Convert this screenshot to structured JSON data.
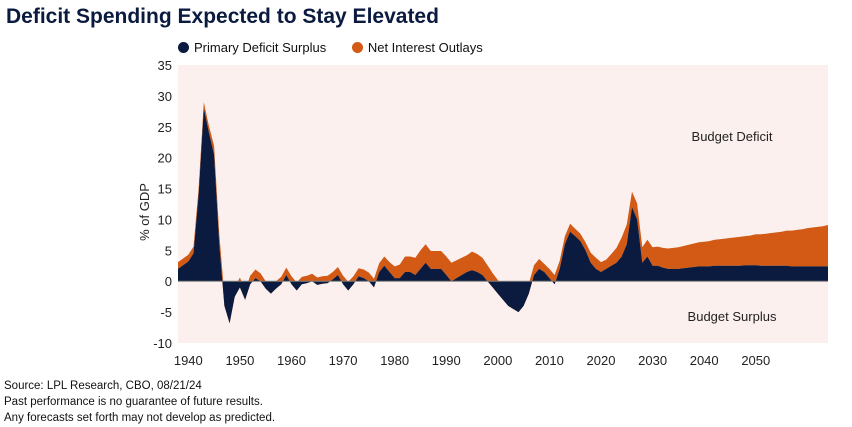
{
  "chart_data": {
    "type": "area",
    "title": "Deficit Spending Expected to Stay Elevated",
    "xlabel": "",
    "ylabel": "% of GDP",
    "xlim": [
      1938,
      2064
    ],
    "ylim": [
      -10,
      35
    ],
    "yticks": [
      35,
      30,
      25,
      20,
      15,
      10,
      5,
      0,
      -5,
      -10
    ],
    "yticklabels": [
      "35",
      "30",
      "25",
      "20",
      "15",
      "10",
      "5",
      "0",
      "-5",
      "-10"
    ],
    "xticks": [
      1940,
      1950,
      1960,
      1970,
      1980,
      1990,
      2000,
      2010,
      2020,
      2030,
      2040,
      2050
    ],
    "xticklabels": [
      "1940",
      "1950",
      "1960",
      "1970",
      "1980",
      "1990",
      "2000",
      "2010",
      "2020",
      "2030",
      "2040",
      "2050"
    ],
    "legend": {
      "position": "top-left",
      "entries": [
        "Primary Deficit Surplus",
        "Net Interest Outlays"
      ]
    },
    "annotations": [
      "Budget Deficit",
      "Budget Surplus"
    ],
    "colors": {
      "primary": "#0b1a3f",
      "interest": "#d25a14",
      "plot_bg": "#fbf0ee",
      "zero_line": "#7f7f7f"
    },
    "x": [
      1938,
      1940,
      1941,
      1942,
      1943,
      1944,
      1945,
      1946,
      1947,
      1948,
      1949,
      1950,
      1951,
      1952,
      1953,
      1954,
      1955,
      1956,
      1957,
      1958,
      1959,
      1960,
      1961,
      1962,
      1963,
      1964,
      1965,
      1966,
      1967,
      1968,
      1969,
      1970,
      1971,
      1972,
      1973,
      1974,
      1975,
      1976,
      1977,
      1978,
      1979,
      1980,
      1981,
      1982,
      1983,
      1984,
      1985,
      1986,
      1987,
      1988,
      1989,
      1990,
      1991,
      1992,
      1993,
      1994,
      1995,
      1996,
      1997,
      1998,
      1999,
      2000,
      2001,
      2002,
      2003,
      2004,
      2005,
      2006,
      2007,
      2008,
      2009,
      2010,
      2011,
      2012,
      2013,
      2014,
      2015,
      2016,
      2017,
      2018,
      2019,
      2020,
      2021,
      2022,
      2023,
      2024,
      2025,
      2026,
      2027,
      2028,
      2029,
      2030,
      2031,
      2032,
      2033,
      2034,
      2035,
      2036,
      2037,
      2038,
      2039,
      2040,
      2041,
      2042,
      2043,
      2044,
      2045,
      2046,
      2047,
      2048,
      2049,
      2050,
      2051,
      2052,
      2053,
      2054,
      2055,
      2056,
      2057,
      2058,
      2059,
      2060,
      2061,
      2062,
      2063,
      2064
    ],
    "series": [
      {
        "name": "Primary Deficit Surplus",
        "values": [
          2,
          3.2,
          4.5,
          14,
          28,
          24,
          20.5,
          6,
          -4,
          -6.8,
          -2.5,
          -1,
          -3,
          -0.5,
          0.5,
          0,
          -1.2,
          -2,
          -1.2,
          -0.5,
          1,
          -0.5,
          -1.5,
          -0.5,
          -0.3,
          0,
          -0.6,
          -0.4,
          -0.3,
          0.3,
          1,
          -0.5,
          -1.5,
          -0.5,
          0.8,
          0.5,
          0,
          -1,
          1.5,
          2.5,
          1.5,
          0.5,
          0.5,
          1.5,
          1.5,
          1,
          2,
          3,
          2,
          2,
          2,
          1,
          0,
          0.5,
          1,
          1.5,
          1.8,
          1.5,
          1,
          0,
          -1,
          -2,
          -3,
          -4,
          -4.5,
          -5,
          -4,
          -2,
          1,
          2,
          1.5,
          0.5,
          -0.5,
          2,
          6,
          8,
          7.3,
          6.5,
          5,
          3,
          2,
          1.5,
          2,
          2.5,
          3,
          4,
          6,
          12,
          10,
          3,
          4,
          2.5,
          2.5,
          2.2,
          2,
          2,
          2,
          2.1,
          2.2,
          2.3,
          2.4,
          2.4,
          2.4,
          2.5,
          2.5,
          2.5,
          2.5,
          2.5,
          2.5,
          2.6,
          2.6,
          2.6,
          2.5,
          2.5,
          2.5,
          2.5,
          2.5,
          2.5,
          2.4,
          2.4,
          2.4,
          2.4,
          2.4,
          2.4,
          2.4,
          2.4
        ]
      },
      {
        "name": "Net Interest Outlays",
        "values": [
          1.1,
          1.1,
          1.1,
          1,
          1,
          1.1,
          1.4,
          1.6,
          1.7,
          1.6,
          1.5,
          1.6,
          1.5,
          1.4,
          1.4,
          1.3,
          1.2,
          1.2,
          1.2,
          1.2,
          1.2,
          1.3,
          1.3,
          1.2,
          1.2,
          1.2,
          1.2,
          1.2,
          1.2,
          1.2,
          1.3,
          1.4,
          1.4,
          1.3,
          1.3,
          1.4,
          1.4,
          1.4,
          1.4,
          1.5,
          1.6,
          1.9,
          2.2,
          2.5,
          2.5,
          2.8,
          3.0,
          3.0,
          2.9,
          2.9,
          2.9,
          3.0,
          3.0,
          2.9,
          2.8,
          2.7,
          3.0,
          2.9,
          2.8,
          2.6,
          2.3,
          2.2,
          1.9,
          1.6,
          1.4,
          1.3,
          1.4,
          1.6,
          1.6,
          1.6,
          1.3,
          1.5,
          1.5,
          1.3,
          1.3,
          1.3,
          1.2,
          1.2,
          1.3,
          1.6,
          1.8,
          1.6,
          1.5,
          1.9,
          2.4,
          3.1,
          3.2,
          2.5,
          2.6,
          2.5,
          2.7,
          3.0,
          3.1,
          3.2,
          3.3,
          3.4,
          3.5,
          3.6,
          3.7,
          3.8,
          3.9,
          4.0,
          4.1,
          4.2,
          4.3,
          4.4,
          4.5,
          4.6,
          4.7,
          4.7,
          4.8,
          5.0,
          5.1,
          5.2,
          5.3,
          5.4,
          5.5,
          5.7,
          5.8,
          5.9,
          6.0,
          6.2,
          6.3,
          6.4,
          6.5,
          6.7
        ]
      }
    ]
  },
  "footnotes": {
    "source": "Source: LPL Research, CBO, 08/21/24",
    "line2": "Past performance is no guarantee of future results.",
    "line3": "Any forecasts set forth may not develop as predicted."
  }
}
